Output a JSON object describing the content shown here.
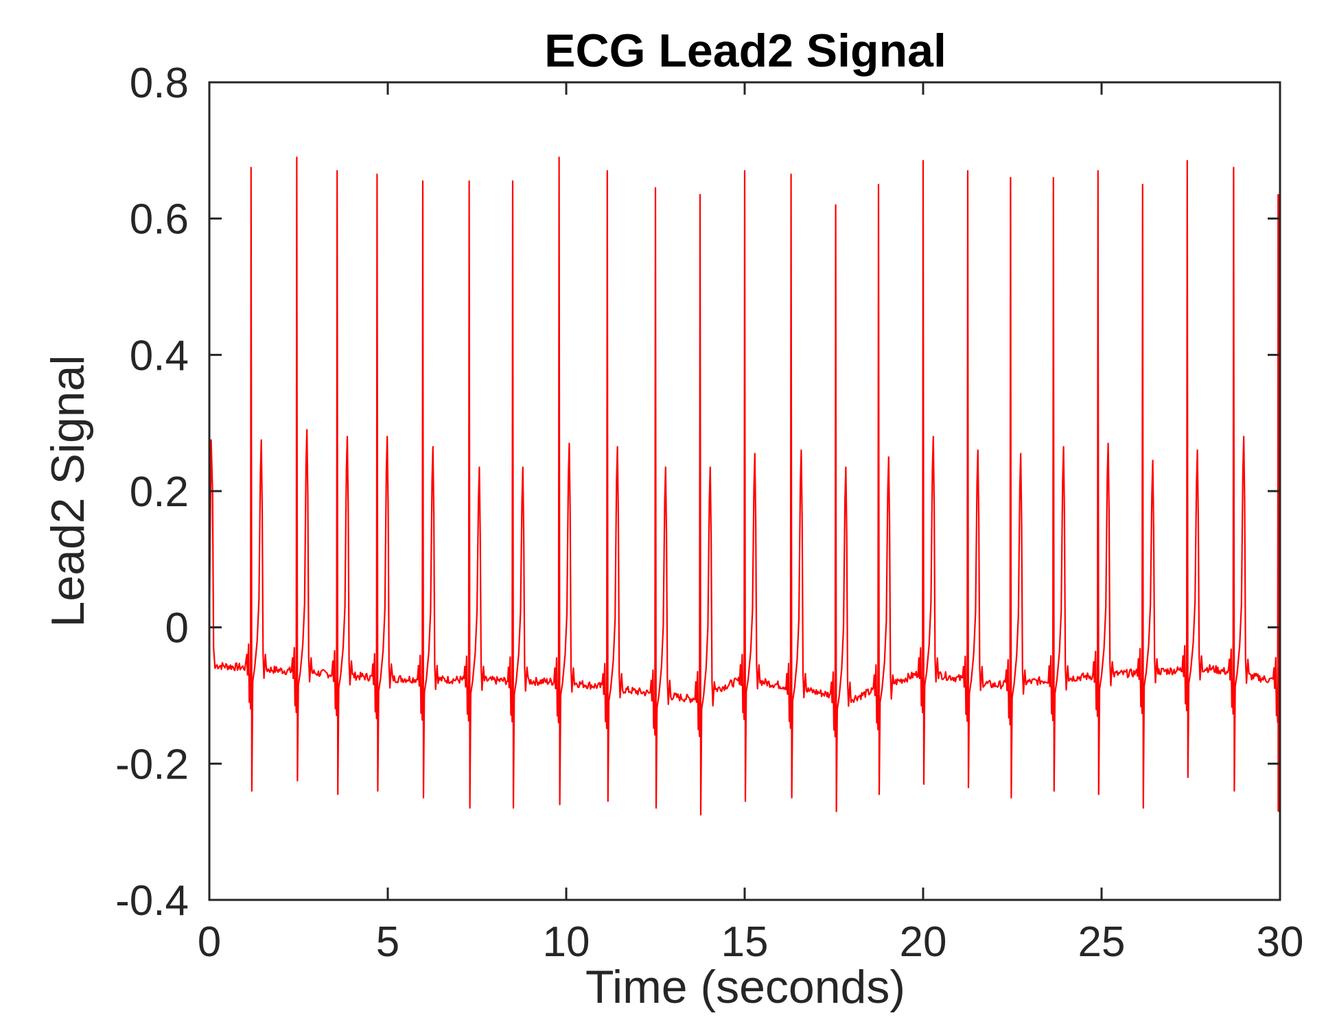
{
  "chart_data": {
    "type": "line",
    "title": "ECG Lead2 Signal",
    "xlabel": "Time (seconds)",
    "ylabel": "Lead2 Signal",
    "xlim": [
      0,
      30
    ],
    "ylim": [
      -0.4,
      0.8
    ],
    "xticks": [
      0,
      5,
      10,
      15,
      20,
      25,
      30
    ],
    "xtick_labels": [
      "0",
      "5",
      "10",
      "15",
      "20",
      "25",
      "30"
    ],
    "yticks": [
      -0.4,
      -0.2,
      0,
      0.2,
      0.4,
      0.6,
      0.8
    ],
    "ytick_labels": [
      "-0.4",
      "-0.2",
      "0",
      "0.2",
      "0.4",
      "0.6",
      "0.8"
    ],
    "grid": false,
    "legend": false,
    "line_color": "#ff0000",
    "axis_color": "#262626",
    "series": [
      {
        "values_description_note": "",
        "baseline": [
          [
            0.0,
            -0.055
          ],
          [
            5.0,
            -0.075
          ],
          [
            10.0,
            -0.08
          ],
          [
            13.5,
            -0.105
          ],
          [
            15.0,
            -0.075
          ],
          [
            18.0,
            -0.105
          ],
          [
            20.0,
            -0.065
          ],
          [
            22.0,
            -0.085
          ],
          [
            25.0,
            -0.07
          ],
          [
            28.0,
            -0.06
          ],
          [
            30.0,
            -0.08
          ]
        ],
        "beats": [
          [
            1.17,
            0.675,
            -0.24,
            0.275
          ],
          [
            2.45,
            0.69,
            -0.225,
            0.29
          ],
          [
            3.58,
            0.67,
            -0.245,
            0.28
          ],
          [
            4.7,
            0.665,
            -0.24,
            0.28
          ],
          [
            5.98,
            0.655,
            -0.25,
            0.265
          ],
          [
            7.28,
            0.655,
            -0.265,
            0.235
          ],
          [
            8.5,
            0.655,
            -0.265,
            0.235
          ],
          [
            9.8,
            0.69,
            -0.26,
            0.27
          ],
          [
            11.15,
            0.67,
            -0.255,
            0.265
          ],
          [
            12.5,
            0.645,
            -0.265,
            0.235
          ],
          [
            13.75,
            0.635,
            -0.275,
            0.235
          ],
          [
            15.0,
            0.67,
            -0.255,
            0.255
          ],
          [
            16.3,
            0.665,
            -0.25,
            0.26
          ],
          [
            17.55,
            0.62,
            -0.27,
            0.235
          ],
          [
            18.75,
            0.65,
            -0.245,
            0.25
          ],
          [
            20.0,
            0.685,
            -0.23,
            0.28
          ],
          [
            21.25,
            0.67,
            -0.235,
            0.26
          ],
          [
            22.45,
            0.66,
            -0.25,
            0.255
          ],
          [
            23.65,
            0.66,
            -0.24,
            0.265
          ],
          [
            24.9,
            0.67,
            -0.245,
            0.27
          ],
          [
            26.15,
            0.65,
            -0.265,
            0.245
          ],
          [
            27.4,
            0.685,
            -0.22,
            0.26
          ],
          [
            28.7,
            0.675,
            -0.24,
            0.28
          ],
          [
            29.95,
            0.635,
            -0.27,
            0.0
          ]
        ],
        "start": [
          0.0,
          0.0,
          0.12,
          0.275
        ]
      }
    ]
  }
}
